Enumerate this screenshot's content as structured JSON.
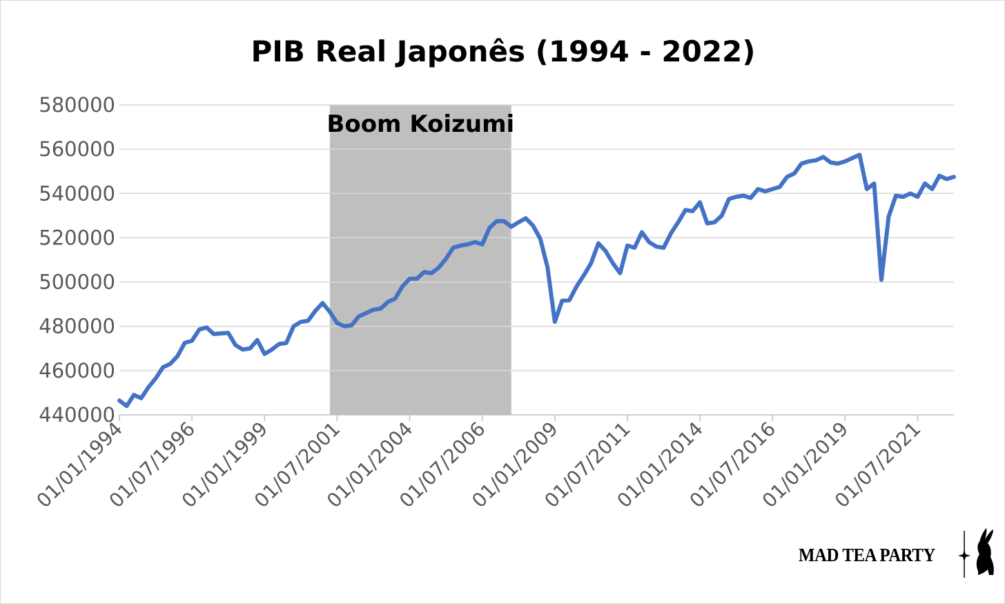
{
  "chart_data": {
    "type": "line",
    "title": "PIB Real Japonês (1994 - 2022)",
    "xlabel": "",
    "ylabel": "",
    "ylim": [
      440000,
      580000
    ],
    "yticks": [
      "440000",
      "460000",
      "480000",
      "500000",
      "520000",
      "540000",
      "560000",
      "580000"
    ],
    "x_start": "1994-01-01",
    "x_step_months": 3,
    "xtick_labels": [
      "01/01/1994",
      "01/07/1996",
      "01/01/1999",
      "01/07/2001",
      "01/01/2004",
      "01/07/2006",
      "01/01/2009",
      "01/07/2011",
      "01/01/2014",
      "01/07/2016",
      "01/01/2019",
      "01/07/2021"
    ],
    "grid": true,
    "legend": "none",
    "annotations": [
      {
        "label": "Boom Koizumi",
        "x_from": "2001-04-01",
        "x_to": "2007-07-01"
      }
    ],
    "series": [
      {
        "color": "#4472c4",
        "values": [
          446500,
          444000,
          449000,
          447500,
          452500,
          456500,
          461500,
          463000,
          466500,
          472500,
          473500,
          478500,
          479500,
          476500,
          476800,
          477000,
          471500,
          469500,
          470000,
          473800,
          467500,
          469500,
          472000,
          472500,
          480000,
          482000,
          482500,
          487000,
          490500,
          486500,
          481500,
          480000,
          480500,
          484500,
          486000,
          487500,
          488000,
          491000,
          492500,
          498000,
          501500,
          501500,
          504500,
          504000,
          506500,
          510500,
          515500,
          516500,
          517000,
          518000,
          517000,
          524500,
          527500,
          527500,
          525000,
          527000,
          528800,
          525500,
          519500,
          506500,
          482000,
          491500,
          491800,
          498000,
          503000,
          508500,
          517500,
          514000,
          508500,
          504000,
          516500,
          515500,
          522500,
          518000,
          516000,
          515500,
          522000,
          527000,
          532500,
          532000,
          536000,
          526500,
          527000,
          530000,
          537500,
          538500,
          539000,
          538000,
          542000,
          541000,
          542000,
          543000,
          547500,
          549000,
          553500,
          554500,
          555000,
          556500,
          554000,
          553500,
          554500,
          556000,
          557500,
          542000,
          544500,
          501000,
          529500,
          539000,
          538500,
          540000,
          538500,
          544500,
          542000,
          548000,
          546500,
          547500
        ]
      }
    ]
  },
  "logo": {
    "text": "MAD TEA PARTY"
  }
}
